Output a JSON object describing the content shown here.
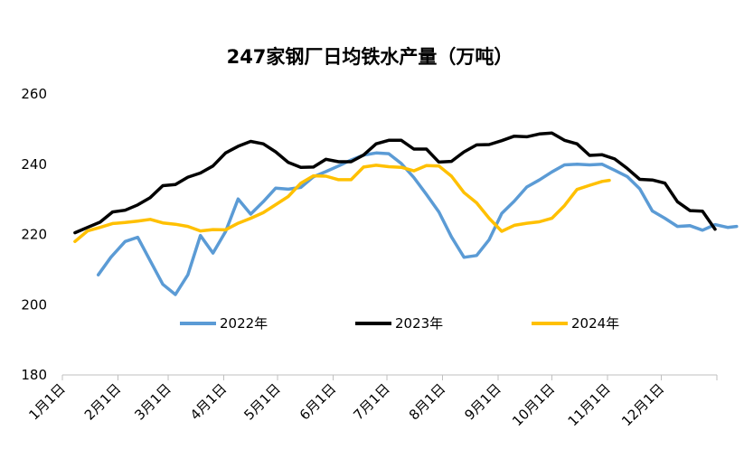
{
  "chart_data": {
    "type": "line",
    "title": "247家钢厂日均铁水产量（万吨）",
    "xlabel": "",
    "ylabel": "",
    "ylim": [
      180,
      260
    ],
    "yticks": [
      180,
      200,
      220,
      240,
      260
    ],
    "xlim": [
      1,
      366
    ],
    "xticks": [
      {
        "label": "1月1日",
        "day": 1
      },
      {
        "label": "2月1日",
        "day": 32
      },
      {
        "label": "3月1日",
        "day": 60
      },
      {
        "label": "4月1日",
        "day": 91
      },
      {
        "label": "5月1日",
        "day": 121
      },
      {
        "label": "6月1日",
        "day": 152
      },
      {
        "label": "7月1日",
        "day": 182
      },
      {
        "label": "8月1日",
        "day": 213
      },
      {
        "label": "9月1日",
        "day": 244
      },
      {
        "label": "10月1日",
        "day": 274
      },
      {
        "label": "11月1日",
        "day": 305
      },
      {
        "label": "12月1日",
        "day": 335
      }
    ],
    "grid": false,
    "legend_position": "inside-middle",
    "series": [
      {
        "name": "2022年",
        "color": "#5B9BD5",
        "points": [
          [
            21,
            208.5
          ],
          [
            28,
            213.5
          ],
          [
            36,
            218.0
          ],
          [
            43,
            219.2
          ],
          [
            50,
            212.5
          ],
          [
            57,
            205.8
          ],
          [
            64,
            202.9
          ],
          [
            71,
            208.5
          ],
          [
            78,
            219.7
          ],
          [
            85,
            214.7
          ],
          [
            92,
            220.8
          ],
          [
            99,
            230.1
          ],
          [
            106,
            225.8
          ],
          [
            113,
            229.3
          ],
          [
            120,
            233.2
          ],
          [
            127,
            232.9
          ],
          [
            134,
            233.4
          ],
          [
            141,
            236.4
          ],
          [
            148,
            237.9
          ],
          [
            155,
            239.5
          ],
          [
            162,
            241.2
          ],
          [
            169,
            242.6
          ],
          [
            176,
            243.2
          ],
          [
            183,
            243.0
          ],
          [
            190,
            240.2
          ],
          [
            197,
            236.2
          ],
          [
            204,
            231.4
          ],
          [
            211,
            226.4
          ],
          [
            218,
            219.3
          ],
          [
            225,
            213.5
          ],
          [
            232,
            214.0
          ],
          [
            239,
            218.5
          ],
          [
            246,
            226.0
          ],
          [
            253,
            229.5
          ],
          [
            260,
            233.5
          ],
          [
            267,
            235.5
          ],
          [
            274,
            237.8
          ],
          [
            281,
            239.8
          ],
          [
            288,
            240.0
          ],
          [
            295,
            239.8
          ],
          [
            302,
            240.0
          ],
          [
            309,
            238.3
          ],
          [
            316,
            236.5
          ],
          [
            323,
            233.0
          ],
          [
            330,
            226.7
          ],
          [
            337,
            224.6
          ],
          [
            344,
            222.3
          ],
          [
            351,
            222.5
          ],
          [
            358,
            221.2
          ],
          [
            365,
            222.8
          ],
          [
            372,
            222.0
          ],
          [
            377,
            222.3
          ]
        ]
      },
      {
        "name": "2023年",
        "color": "#000000",
        "points": [
          [
            8,
            220.5
          ],
          [
            15,
            222.0
          ],
          [
            22,
            223.5
          ],
          [
            29,
            226.4
          ],
          [
            36,
            226.9
          ],
          [
            43,
            228.4
          ],
          [
            50,
            230.5
          ],
          [
            57,
            233.9
          ],
          [
            64,
            234.2
          ],
          [
            71,
            236.3
          ],
          [
            78,
            237.5
          ],
          [
            85,
            239.5
          ],
          [
            92,
            243.2
          ],
          [
            99,
            245.1
          ],
          [
            106,
            246.5
          ],
          [
            113,
            245.8
          ],
          [
            120,
            243.5
          ],
          [
            127,
            240.5
          ],
          [
            134,
            239.1
          ],
          [
            141,
            239.2
          ],
          [
            148,
            241.4
          ],
          [
            155,
            240.7
          ],
          [
            162,
            240.7
          ],
          [
            169,
            242.6
          ],
          [
            176,
            245.8
          ],
          [
            183,
            246.8
          ],
          [
            190,
            246.8
          ],
          [
            197,
            244.3
          ],
          [
            204,
            244.3
          ],
          [
            211,
            240.6
          ],
          [
            218,
            240.8
          ],
          [
            225,
            243.5
          ],
          [
            232,
            245.5
          ],
          [
            239,
            245.6
          ],
          [
            246,
            246.7
          ],
          [
            253,
            248.0
          ],
          [
            260,
            247.8
          ],
          [
            267,
            248.6
          ],
          [
            274,
            248.9
          ],
          [
            281,
            246.8
          ],
          [
            288,
            245.8
          ],
          [
            295,
            242.5
          ],
          [
            302,
            242.7
          ],
          [
            309,
            241.5
          ],
          [
            316,
            238.8
          ],
          [
            323,
            235.7
          ],
          [
            330,
            235.5
          ],
          [
            337,
            234.6
          ],
          [
            344,
            229.3
          ],
          [
            351,
            226.8
          ],
          [
            358,
            226.6
          ],
          [
            365,
            221.5
          ]
        ]
      },
      {
        "name": "2024年",
        "color": "#FFC000",
        "points": [
          [
            8,
            218.0
          ],
          [
            15,
            221.0
          ],
          [
            22,
            222.0
          ],
          [
            29,
            223.1
          ],
          [
            36,
            223.4
          ],
          [
            43,
            223.8
          ],
          [
            50,
            224.3
          ],
          [
            57,
            223.3
          ],
          [
            64,
            222.9
          ],
          [
            71,
            222.3
          ],
          [
            78,
            221.0
          ],
          [
            85,
            221.4
          ],
          [
            92,
            221.3
          ],
          [
            99,
            223.2
          ],
          [
            106,
            224.6
          ],
          [
            113,
            226.2
          ],
          [
            120,
            228.5
          ],
          [
            127,
            230.8
          ],
          [
            134,
            234.6
          ],
          [
            141,
            236.7
          ],
          [
            148,
            236.6
          ],
          [
            155,
            235.6
          ],
          [
            162,
            235.6
          ],
          [
            169,
            239.2
          ],
          [
            176,
            239.7
          ],
          [
            183,
            239.3
          ],
          [
            190,
            239.1
          ],
          [
            197,
            238.1
          ],
          [
            204,
            239.6
          ],
          [
            211,
            239.5
          ],
          [
            218,
            236.6
          ],
          [
            225,
            231.9
          ],
          [
            232,
            229.0
          ],
          [
            239,
            224.6
          ],
          [
            246,
            220.9
          ],
          [
            253,
            222.6
          ],
          [
            260,
            223.2
          ],
          [
            267,
            223.6
          ],
          [
            274,
            224.6
          ],
          [
            281,
            228.2
          ],
          [
            288,
            232.8
          ],
          [
            295,
            234.0
          ],
          [
            302,
            235.1
          ],
          [
            306,
            235.4
          ]
        ]
      }
    ]
  }
}
